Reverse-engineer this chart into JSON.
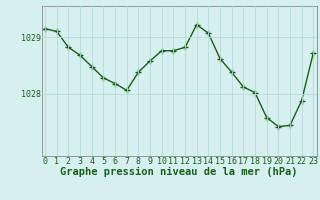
{
  "x": [
    0,
    1,
    2,
    3,
    4,
    5,
    6,
    7,
    8,
    9,
    10,
    11,
    12,
    13,
    14,
    15,
    16,
    17,
    18,
    19,
    20,
    21,
    22,
    23
  ],
  "y": [
    1029.15,
    1029.1,
    1028.82,
    1028.68,
    1028.48,
    1028.28,
    1028.18,
    1028.06,
    1028.38,
    1028.58,
    1028.76,
    1028.76,
    1028.82,
    1029.22,
    1029.07,
    1028.62,
    1028.38,
    1028.12,
    1028.02,
    1027.58,
    1027.42,
    1027.44,
    1027.88,
    1028.72
  ],
  "line_color": "#1a5c1a",
  "marker": "+",
  "marker_size": 4,
  "marker_lw": 1.0,
  "bg_color": "#d6f0f0",
  "grid_color": "#b8dada",
  "xlabel": "Graphe pression niveau de la mer (hPa)",
  "xlabel_fontsize": 7.5,
  "tick_color": "#1a5c1a",
  "ylim_min": 1026.9,
  "ylim_max": 1029.55,
  "ytick_positions": [
    1028,
    1029
  ],
  "line_width": 1.0
}
